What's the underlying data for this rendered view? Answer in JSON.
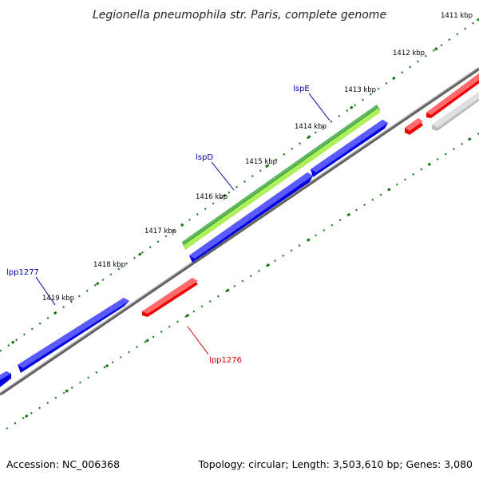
{
  "title": "Legionella pneumophila str. Paris, complete genome",
  "footer": {
    "accession": "Accession: NC_006368",
    "summary": "Topology: circular; Length: 3,503,610 bp; Genes: 3,080"
  },
  "colors": {
    "forward_gene": "#0000dd",
    "reverse_gene": "#ee0000",
    "rna_gene": "#2e8b2e",
    "rna_gene_light": "#aef05a",
    "pseudo_gene": "#c8c8c8",
    "backbone": "#707070",
    "tick": "#1a7a1a",
    "gene_label_forward": "#0000aa",
    "gene_label_reverse": "#dd0000"
  },
  "kbp_ticks": [
    "1411 kbp",
    "1412 kbp",
    "1413 kbp",
    "1414 kbp",
    "1415 kbp",
    "1416 kbp",
    "1417 kbp",
    "1418 kbp",
    "1419 kbp"
  ],
  "gene_labels": [
    {
      "id": "lspE",
      "text": "lspE",
      "strand": "forward"
    },
    {
      "id": "lspD",
      "text": "lspD",
      "strand": "forward"
    },
    {
      "id": "lpp1277",
      "text": "lpp1277",
      "strand": "forward"
    },
    {
      "id": "lpp1276",
      "text": "lpp1276",
      "strand": "reverse"
    }
  ]
}
